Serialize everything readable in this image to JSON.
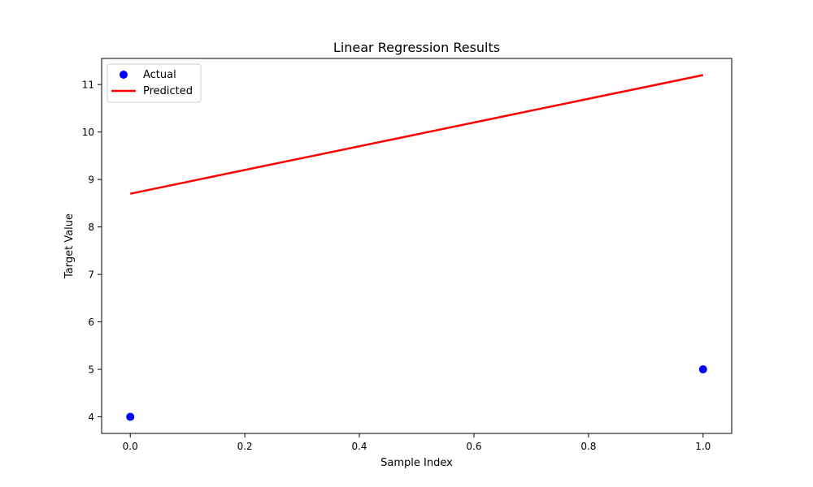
{
  "colors": {
    "actual": "#0000ff",
    "predicted": "#ff0000",
    "axes": "#000000",
    "legend_border": "#cccccc"
  },
  "chart_data": {
    "type": "scatter",
    "title": "Linear Regression Results",
    "xlabel": "Sample Index",
    "ylabel": "Target Value",
    "xlim": [
      -0.05,
      1.05
    ],
    "ylim": [
      3.65,
      11.55
    ],
    "x_ticks": [
      0.0,
      0.2,
      0.4,
      0.6,
      0.8,
      1.0
    ],
    "x_tick_labels": [
      "0.0",
      "0.2",
      "0.4",
      "0.6",
      "0.8",
      "1.0"
    ],
    "y_ticks": [
      4,
      5,
      6,
      7,
      8,
      9,
      10,
      11
    ],
    "y_tick_labels": [
      "4",
      "5",
      "6",
      "7",
      "8",
      "9",
      "10",
      "11"
    ],
    "grid": false,
    "legend": {
      "position": "top-left"
    },
    "series": [
      {
        "name": "Actual",
        "kind": "scatter",
        "color": "#0000ff",
        "x": [
          0,
          1
        ],
        "y": [
          4,
          5
        ]
      },
      {
        "name": "Predicted",
        "kind": "line",
        "color": "#ff0000",
        "x": [
          0,
          1
        ],
        "y": [
          8.7,
          11.2
        ]
      }
    ]
  }
}
